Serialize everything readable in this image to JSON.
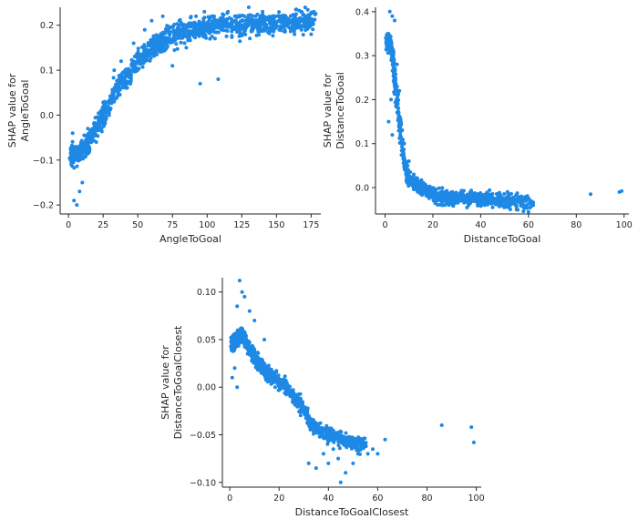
{
  "chart_data": [
    {
      "type": "scatter",
      "xlabel": "AngleToGoal",
      "ylabel": [
        "SHAP value for",
        "AngleToGoal"
      ],
      "xlim": [
        -6,
        182
      ],
      "ylim": [
        -0.22,
        0.24
      ],
      "xticks": [
        0,
        25,
        50,
        75,
        100,
        125,
        150,
        175
      ],
      "xtick_labels": [
        "0",
        "25",
        "50",
        "75",
        "100",
        "125",
        "150",
        "175"
      ],
      "yticks": [
        -0.2,
        -0.1,
        0.0,
        0.1,
        0.2
      ],
      "ytick_labels": [
        "−0.2",
        "−0.1",
        "0.0",
        "0.1",
        "0.2"
      ],
      "color": "#1E88E5",
      "grid": false,
      "legend": "none",
      "trend": [
        [
          2,
          -0.085
        ],
        [
          5,
          -0.09
        ],
        [
          10,
          -0.08
        ],
        [
          15,
          -0.06
        ],
        [
          18,
          -0.04
        ],
        [
          22,
          -0.02
        ],
        [
          25,
          0.0
        ],
        [
          28,
          0.015
        ],
        [
          30,
          0.025
        ],
        [
          32,
          0.05
        ],
        [
          35,
          0.06
        ],
        [
          40,
          0.08
        ],
        [
          45,
          0.1
        ],
        [
          50,
          0.12
        ],
        [
          55,
          0.135
        ],
        [
          60,
          0.15
        ],
        [
          65,
          0.16
        ],
        [
          70,
          0.17
        ],
        [
          80,
          0.18
        ],
        [
          90,
          0.19
        ],
        [
          100,
          0.195
        ],
        [
          110,
          0.2
        ],
        [
          125,
          0.2
        ],
        [
          150,
          0.205
        ],
        [
          178,
          0.21
        ]
      ],
      "points": [
        [
          4,
          -0.19
        ],
        [
          6,
          -0.2
        ],
        [
          8,
          -0.17
        ],
        [
          3,
          -0.04
        ],
        [
          10,
          -0.15
        ],
        [
          14,
          -0.03
        ],
        [
          20,
          -0.06
        ],
        [
          26,
          0.03
        ],
        [
          33,
          0.1
        ],
        [
          38,
          0.12
        ],
        [
          42,
          0.06
        ],
        [
          47,
          0.16
        ],
        [
          55,
          0.19
        ],
        [
          60,
          0.21
        ],
        [
          68,
          0.22
        ],
        [
          72,
          0.19
        ],
        [
          75,
          0.11
        ],
        [
          80,
          0.21
        ],
        [
          85,
          0.15
        ],
        [
          88,
          0.2
        ],
        [
          92,
          0.22
        ],
        [
          95,
          0.07
        ],
        [
          98,
          0.23
        ],
        [
          100,
          0.19
        ],
        [
          102,
          0.17
        ],
        [
          105,
          0.22
        ],
        [
          108,
          0.08
        ],
        [
          110,
          0.21
        ],
        [
          112,
          0.2
        ],
        [
          115,
          0.23
        ],
        [
          118,
          0.19
        ],
        [
          120,
          0.22
        ],
        [
          122,
          0.2
        ],
        [
          125,
          0.18
        ],
        [
          128,
          0.21
        ],
        [
          130,
          0.24
        ],
        [
          132,
          0.19
        ],
        [
          135,
          0.22
        ],
        [
          138,
          0.2
        ],
        [
          140,
          0.23
        ],
        [
          142,
          0.19
        ],
        [
          145,
          0.21
        ],
        [
          148,
          0.2
        ],
        [
          150,
          0.22
        ],
        [
          152,
          0.19
        ],
        [
          155,
          0.21
        ],
        [
          158,
          0.2
        ],
        [
          160,
          0.21
        ],
        [
          163,
          0.18
        ],
        [
          165,
          0.2
        ],
        [
          168,
          0.19
        ],
        [
          172,
          0.2
        ],
        [
          175,
          0.18
        ],
        [
          177,
          0.23
        ]
      ]
    },
    {
      "type": "scatter",
      "xlabel": "DistanceToGoal",
      "ylabel": [
        "SHAP value for",
        "DistanceToGoal"
      ],
      "xlim": [
        -4,
        102
      ],
      "ylim": [
        -0.06,
        0.41
      ],
      "xticks": [
        0,
        20,
        40,
        60,
        80,
        100
      ],
      "xtick_labels": [
        "0",
        "20",
        "40",
        "60",
        "80",
        "100"
      ],
      "yticks": [
        0.0,
        0.1,
        0.2,
        0.3,
        0.4
      ],
      "ytick_labels": [
        "0.0",
        "0.1",
        "0.2",
        "0.3",
        "0.4"
      ],
      "color": "#1E88E5",
      "grid": false,
      "legend": "none",
      "trend": [
        [
          1,
          0.33
        ],
        [
          2,
          0.33
        ],
        [
          3,
          0.3
        ],
        [
          4,
          0.25
        ],
        [
          5,
          0.2
        ],
        [
          6,
          0.15
        ],
        [
          7,
          0.1
        ],
        [
          8,
          0.06
        ],
        [
          9,
          0.035
        ],
        [
          10,
          0.02
        ],
        [
          12,
          0.01
        ],
        [
          15,
          0.0
        ],
        [
          18,
          -0.01
        ],
        [
          22,
          -0.02
        ],
        [
          30,
          -0.025
        ],
        [
          40,
          -0.025
        ],
        [
          50,
          -0.03
        ],
        [
          55,
          -0.032
        ],
        [
          62,
          -0.035
        ]
      ],
      "points": [
        [
          2,
          0.4
        ],
        [
          3,
          0.39
        ],
        [
          4,
          0.38
        ],
        [
          2.5,
          0.2
        ],
        [
          1.5,
          0.15
        ],
        [
          3,
          0.12
        ],
        [
          5,
          0.28
        ],
        [
          6,
          0.22
        ],
        [
          8,
          0.1
        ],
        [
          10,
          0.06
        ],
        [
          12,
          0.03
        ],
        [
          25,
          -0.04
        ],
        [
          35,
          -0.04
        ],
        [
          45,
          -0.045
        ],
        [
          48,
          -0.02
        ],
        [
          52,
          -0.04
        ],
        [
          55,
          -0.05
        ],
        [
          58,
          -0.045
        ],
        [
          60,
          -0.055
        ],
        [
          62,
          -0.04
        ],
        [
          86,
          -0.015
        ],
        [
          98,
          -0.01
        ],
        [
          99,
          -0.008
        ]
      ]
    },
    {
      "type": "scatter",
      "xlabel": "DistanceToGoalClosest",
      "ylabel": [
        "SHAP value for",
        "DistanceToGoalClosest"
      ],
      "xlim": [
        -3,
        102
      ],
      "ylim": [
        -0.105,
        0.115
      ],
      "xticks": [
        0,
        20,
        40,
        60,
        80,
        100
      ],
      "xtick_labels": [
        "0",
        "20",
        "40",
        "60",
        "80",
        "100"
      ],
      "yticks": [
        -0.1,
        -0.05,
        0.0,
        0.05,
        0.1
      ],
      "ytick_labels": [
        "−0.10",
        "−0.05",
        "0.00",
        "0.05",
        "0.10"
      ],
      "color": "#1E88E5",
      "grid": false,
      "legend": "none",
      "trend": [
        [
          1,
          0.045
        ],
        [
          3,
          0.05
        ],
        [
          5,
          0.055
        ],
        [
          7,
          0.045
        ],
        [
          9,
          0.035
        ],
        [
          12,
          0.025
        ],
        [
          15,
          0.015
        ],
        [
          18,
          0.01
        ],
        [
          20,
          0.005
        ],
        [
          23,
          -0.002
        ],
        [
          26,
          -0.01
        ],
        [
          29,
          -0.02
        ],
        [
          31,
          -0.03
        ],
        [
          33,
          -0.04
        ],
        [
          36,
          -0.045
        ],
        [
          40,
          -0.05
        ],
        [
          45,
          -0.055
        ],
        [
          50,
          -0.06
        ],
        [
          55,
          -0.06
        ]
      ],
      "points": [
        [
          4,
          0.112
        ],
        [
          5,
          0.1
        ],
        [
          6,
          0.095
        ],
        [
          3,
          0.085
        ],
        [
          2,
          0.02
        ],
        [
          1,
          0.01
        ],
        [
          3,
          0.0
        ],
        [
          8,
          0.08
        ],
        [
          10,
          0.07
        ],
        [
          14,
          0.05
        ],
        [
          32,
          -0.08
        ],
        [
          35,
          -0.085
        ],
        [
          38,
          -0.07
        ],
        [
          40,
          -0.08
        ],
        [
          42,
          -0.065
        ],
        [
          44,
          -0.075
        ],
        [
          45,
          -0.1
        ],
        [
          47,
          -0.09
        ],
        [
          48,
          -0.06
        ],
        [
          50,
          -0.08
        ],
        [
          52,
          -0.07
        ],
        [
          54,
          -0.06
        ],
        [
          56,
          -0.07
        ],
        [
          58,
          -0.065
        ],
        [
          60,
          -0.07
        ],
        [
          63,
          -0.055
        ],
        [
          86,
          -0.04
        ],
        [
          98,
          -0.042
        ],
        [
          99,
          -0.058
        ]
      ]
    }
  ]
}
